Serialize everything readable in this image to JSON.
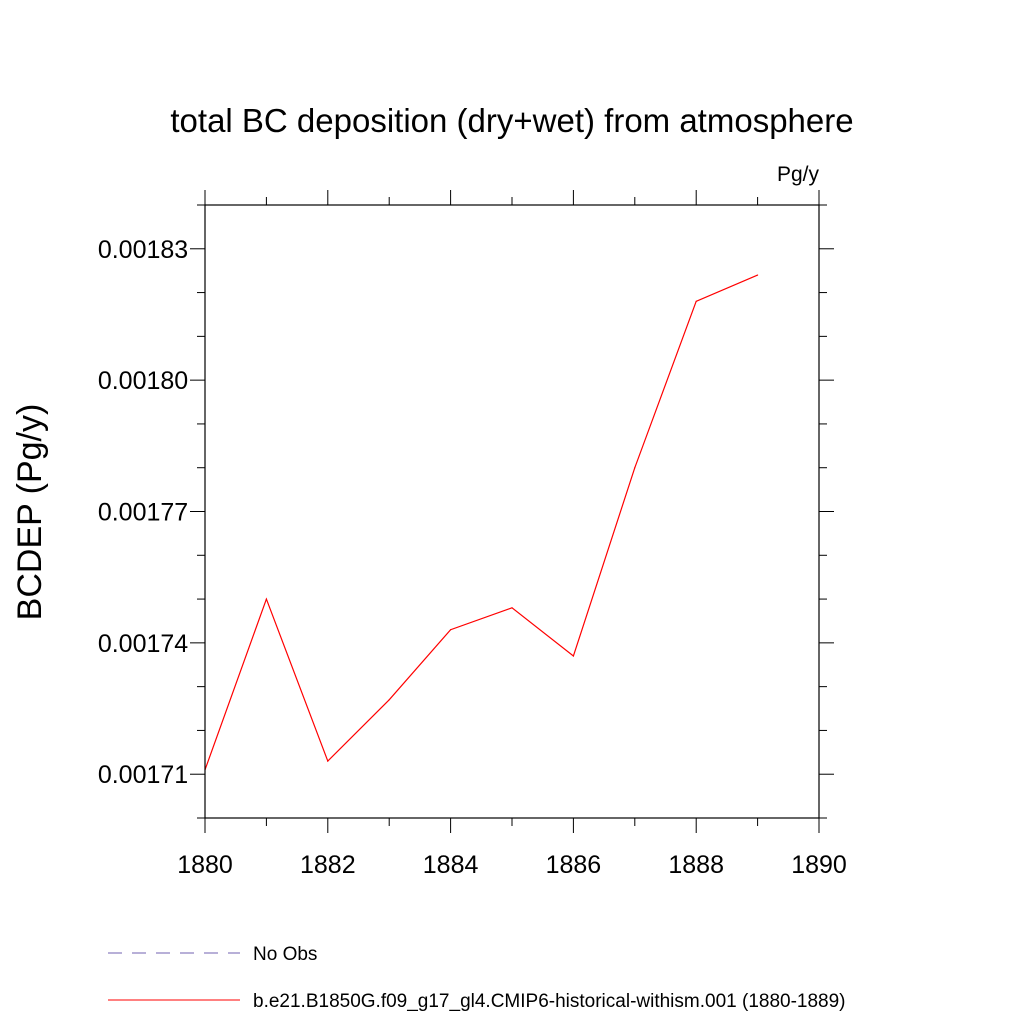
{
  "chart_data": {
    "type": "line",
    "title": "total BC deposition (dry+wet) from atmosphere",
    "units_label": "Pg/y",
    "xlabel": "",
    "ylabel": "BCDEP  (Pg/y)",
    "xlim": [
      1880,
      1890
    ],
    "ylim": [
      0.0017,
      0.00184
    ],
    "x_ticks": [
      1880,
      1882,
      1884,
      1886,
      1888,
      1890
    ],
    "x_tick_labels": [
      "1880",
      "1882",
      "1884",
      "1886",
      "1888",
      "1890"
    ],
    "y_ticks": [
      0.00171,
      0.00174,
      0.00177,
      0.0018,
      0.00183
    ],
    "y_tick_labels": [
      "0.00171",
      "0.00174",
      "0.00177",
      "0.00180",
      "0.00183"
    ],
    "grid": false,
    "legend_position": "bottom",
    "series": [
      {
        "name": "b.e21.B1850G.f09_g17_gl4.CMIP6-historical-withism.001 (1880-1889)",
        "color": "#ff0000",
        "style": "solid",
        "x": [
          1880,
          1881,
          1882,
          1883,
          1884,
          1885,
          1886,
          1887,
          1888,
          1889
        ],
        "y": [
          0.001711,
          0.00175,
          0.001713,
          0.001727,
          0.001743,
          0.001748,
          0.001737,
          0.00178,
          0.001818,
          0.001824
        ]
      }
    ],
    "legend": [
      {
        "label": "No Obs",
        "color": "#7060b0",
        "style": "dashed"
      },
      {
        "label": "b.e21.B1850G.f09_g17_gl4.CMIP6-historical-withism.001 (1880-1889)",
        "color": "#ff0000",
        "style": "solid"
      }
    ]
  }
}
